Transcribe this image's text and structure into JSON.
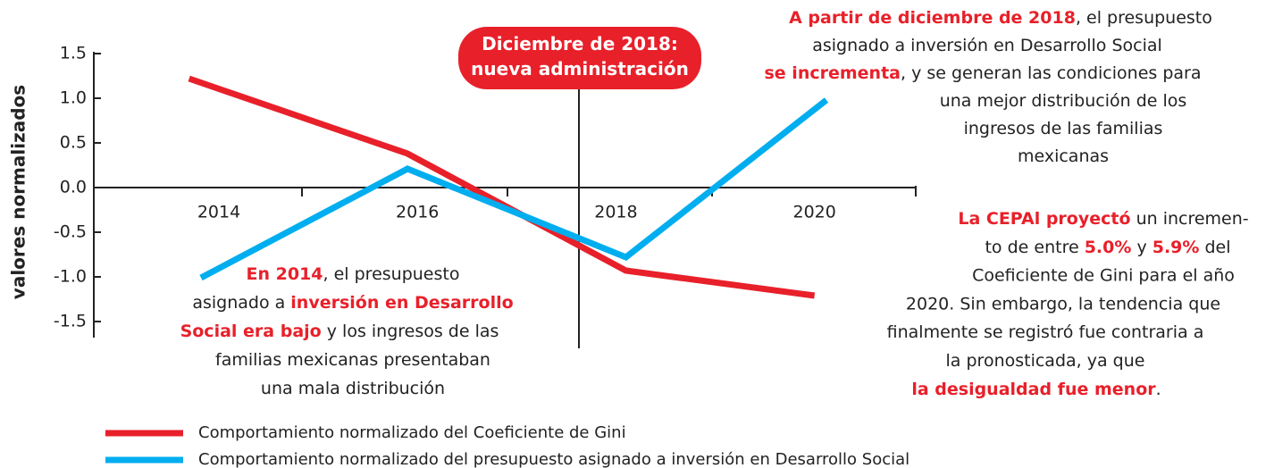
{
  "chart_data": {
    "type": "line",
    "y_label": "valores normalizados",
    "xlim": [
      2012.74,
      2021.02
    ],
    "xticks": [
      2014,
      2016,
      2018,
      2020
    ],
    "ylim": [
      -1.68,
      1.52
    ],
    "yticks": [
      1.5,
      {
        "value": 1,
        "label": "1.0"
      },
      0.5,
      {
        "value": 0,
        "label": "0.0"
      },
      -0.5,
      {
        "value": -1,
        "label": "-1.0"
      },
      -1.5
    ],
    "series": [
      {
        "name": "Comportamiento normalizado del Coeficiente de Gini",
        "color": "#e8202a",
        "x": [
          2013.7,
          2015.9,
          2018.1,
          2020
        ],
        "values": [
          1.22,
          0.38,
          -0.93,
          -1.21
        ]
      },
      {
        "name": "Comportamiento normalizado del presupuesto asignado a inversión en Desarrollo Social",
        "color": "#00aeef",
        "x": [
          2013.82,
          2015.9,
          2018.1,
          2020.12
        ],
        "values": [
          -1.01,
          0.21,
          -0.78,
          0.98
        ]
      }
    ],
    "annotations": [
      {
        "lines": [
          [
            {
              "text": "Diciembre de 2018:"
            }
          ],
          [
            {
              "text": "nueva administración"
            }
          ]
        ]
      },
      {
        "lines": [
          [
            {
              "text": "A partir de diciembre de 2018",
              "em": true
            },
            {
              "text": ", el presupuesto"
            }
          ],
          [
            {
              "text": "asignado a inversión en Desarrollo Social"
            }
          ],
          [
            {
              "text": "se incrementa",
              "em": true
            },
            {
              "text": ", y se generan las condiciones para"
            }
          ],
          [
            {
              "text": "una mejor distribución de los"
            }
          ],
          [
            {
              "text": "ingresos de las familias"
            }
          ],
          [
            {
              "text": "mexicanas"
            }
          ]
        ]
      },
      {
        "lines": [
          [
            {
              "text": "En 2014",
              "em": true
            },
            {
              "text": ", el presupuesto"
            }
          ],
          [
            {
              "text": "asignado a "
            },
            {
              "text": "inversión en Desarrollo",
              "em": true
            }
          ],
          [
            {
              "text": "Social era bajo",
              "em": true
            },
            {
              "text": " y los ingresos de las"
            }
          ],
          [
            {
              "text": "familias mexicanas presentaban"
            }
          ],
          [
            {
              "text": "una mala distribución"
            }
          ]
        ]
      },
      {
        "lines": [
          [
            {
              "text": "La CEPAl proyectó",
              "em": true
            },
            {
              "text": " un incremen-"
            }
          ],
          [
            {
              "text": "to de entre "
            },
            {
              "text": "5.0%",
              "em": true
            },
            {
              "text": " y "
            },
            {
              "text": "5.9%",
              "em": true
            },
            {
              "text": " del"
            }
          ],
          [
            {
              "text": "Coeficiente de Gini para el año"
            }
          ],
          [
            {
              "text": "2020. Sin embargo, la tendencia que"
            }
          ],
          [
            {
              "text": "finalmente se registró fue contraria a"
            }
          ],
          [
            {
              "text": "la pronosticada, ya que"
            }
          ],
          [
            {
              "text": "la desigualdad fue menor",
              "em": true
            },
            {
              "text": "."
            }
          ]
        ]
      }
    ]
  }
}
